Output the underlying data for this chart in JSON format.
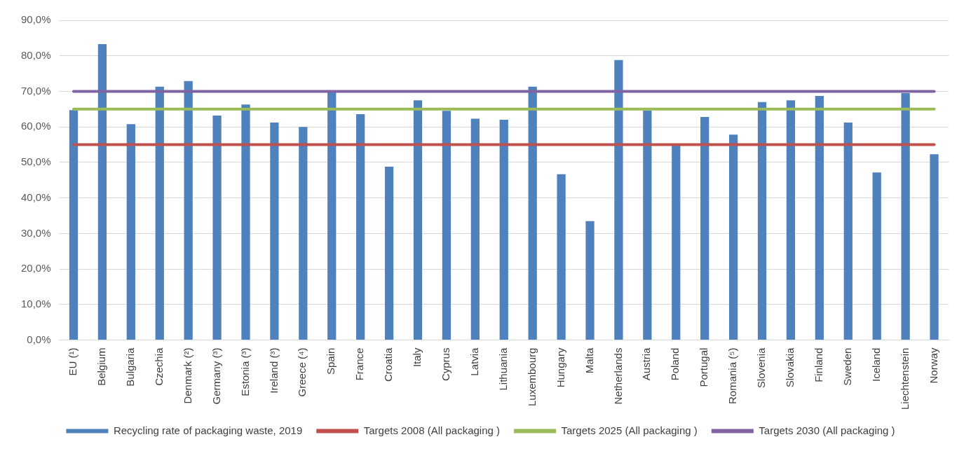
{
  "chart_data": {
    "type": "bar",
    "categories": [
      "EU (¹)",
      "Belgium",
      "Bulgaria",
      "Czechia",
      "Denmark (²)",
      "Germany (³)",
      "Estonia (³)",
      "Ireland (³)",
      "Greece (⁴)",
      "Spain",
      "France",
      "Croatia",
      "Italy",
      "Cyprus",
      "Latvia",
      "Lithuania",
      "Luxembourg",
      "Hungary",
      "Malta",
      "Netherlands",
      "Austria",
      "Poland",
      "Portugal",
      "Romania (⁵)",
      "Slovenia",
      "Slovakia",
      "Finland",
      "Sweden",
      "Iceland",
      "Liechtenstein",
      "Norway"
    ],
    "series": [
      {
        "name": "Recycling rate of packaging waste, 2019",
        "color": "#4f81bd",
        "values": [
          64.7,
          83.3,
          60.8,
          71.3,
          72.9,
          63.2,
          66.3,
          61.2,
          60.0,
          69.7,
          63.6,
          48.8,
          67.5,
          64.5,
          62.3,
          62.0,
          71.3,
          46.7,
          33.5,
          78.8,
          64.6,
          54.7,
          62.8,
          57.8,
          67.0,
          67.5,
          68.7,
          61.2,
          47.2,
          69.5,
          52.3
        ]
      },
      {
        "name": "Targets 2008 (All packaging )",
        "type": "line",
        "color": "#c0504d",
        "values": [
          55,
          55,
          55,
          55,
          55,
          55,
          55,
          55,
          55,
          55,
          55,
          55,
          55,
          55,
          55,
          55,
          55,
          55,
          55,
          55,
          55,
          55,
          55,
          55,
          55,
          55,
          55,
          55,
          55,
          55,
          55
        ]
      },
      {
        "name": "Targets 2025 (All packaging )",
        "type": "line",
        "color": "#9bbb59",
        "values": [
          65,
          65,
          65,
          65,
          65,
          65,
          65,
          65,
          65,
          65,
          65,
          65,
          65,
          65,
          65,
          65,
          65,
          65,
          65,
          65,
          65,
          65,
          65,
          65,
          65,
          65,
          65,
          65,
          65,
          65,
          65
        ]
      },
      {
        "name": "Targets 2030 (All packaging )",
        "type": "line",
        "color": "#8064a2",
        "values": [
          70,
          70,
          70,
          70,
          70,
          70,
          70,
          70,
          70,
          70,
          70,
          70,
          70,
          70,
          70,
          70,
          70,
          70,
          70,
          70,
          70,
          70,
          70,
          70,
          70,
          70,
          70,
          70,
          70,
          70,
          70
        ]
      }
    ],
    "ylim": [
      0,
      90
    ],
    "yticks": [
      {
        "value": 0,
        "label": "0,0%"
      },
      {
        "value": 10,
        "label": "10,0%"
      },
      {
        "value": 20,
        "label": "20,0%"
      },
      {
        "value": 30,
        "label": "30,0%"
      },
      {
        "value": 40,
        "label": "40,0%"
      },
      {
        "value": 50,
        "label": "50,0%"
      },
      {
        "value": 60,
        "label": "60,0%"
      },
      {
        "value": 70,
        "label": "70,0%"
      },
      {
        "value": 80,
        "label": "80,0%"
      },
      {
        "value": 90,
        "label": "90,0%"
      }
    ],
    "grid": "y",
    "legend": "bottom",
    "marker": "none",
    "line_style": "solid"
  }
}
